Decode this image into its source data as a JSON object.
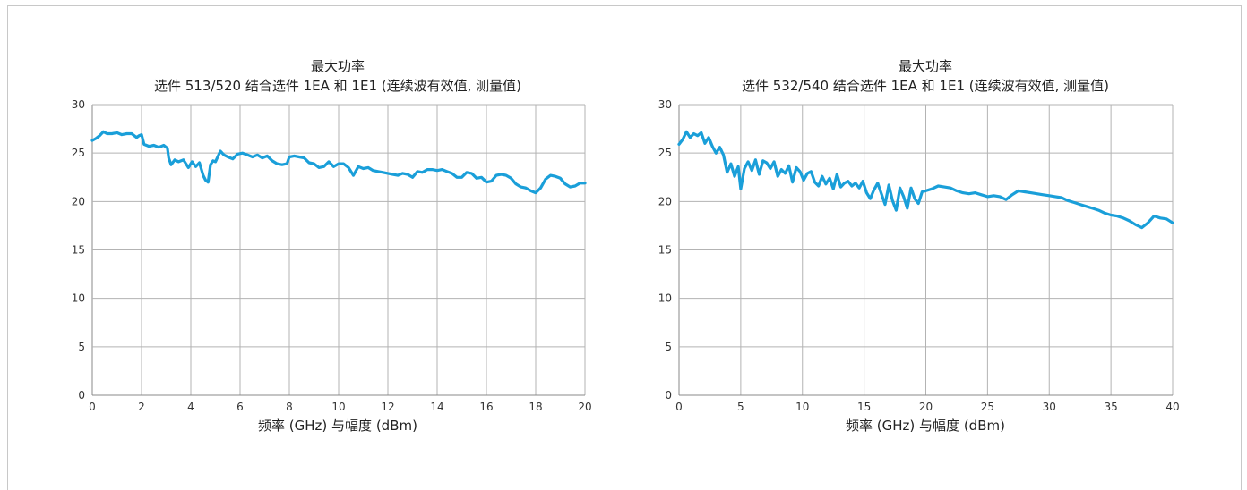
{
  "chart_data": [
    {
      "type": "line",
      "title": "最大功率",
      "subtitle": "选件 513/520 结合选件 1EA 和 1E1 (连续波有效值, 测量值)",
      "xlabel": "频率 (GHz) 与幅度 (dBm)",
      "ylabel": "",
      "xlim": [
        0,
        20
      ],
      "ylim": [
        0,
        30
      ],
      "xticks": [
        "0",
        "2",
        "4",
        "6",
        "8",
        "10",
        "12",
        "14",
        "16",
        "18",
        "20"
      ],
      "yticks": [
        "0",
        "5",
        "10",
        "15",
        "20",
        "25",
        "30"
      ],
      "grid": true,
      "color": "#1a9fd9",
      "series": [
        {
          "x": [
            0,
            0.15,
            0.3,
            0.45,
            0.6,
            0.8,
            1.0,
            1.2,
            1.4,
            1.6,
            1.8,
            1.9,
            2.0,
            2.1,
            2.3,
            2.5,
            2.7,
            2.9,
            3.05,
            3.1,
            3.2,
            3.35,
            3.5,
            3.7,
            3.9,
            4.05,
            4.2,
            4.35,
            4.5,
            4.6,
            4.7,
            4.8,
            4.9,
            5.0,
            5.2,
            5.35,
            5.5,
            5.7,
            5.9,
            6.1,
            6.3,
            6.5,
            6.7,
            6.9,
            7.1,
            7.3,
            7.5,
            7.7,
            7.9,
            8.0,
            8.2,
            8.4,
            8.6,
            8.8,
            9.0,
            9.2,
            9.4,
            9.6,
            9.8,
            10.0,
            10.2,
            10.4,
            10.6,
            10.8,
            11.0,
            11.2,
            11.4,
            11.6,
            11.8,
            12.0,
            12.2,
            12.4,
            12.6,
            12.8,
            13.0,
            13.2,
            13.4,
            13.6,
            13.8,
            14.0,
            14.2,
            14.4,
            14.6,
            14.8,
            15.0,
            15.2,
            15.4,
            15.6,
            15.8,
            16.0,
            16.2,
            16.4,
            16.6,
            16.8,
            17.0,
            17.2,
            17.4,
            17.6,
            17.8,
            18.0,
            18.2,
            18.4,
            18.6,
            18.8,
            19.0,
            19.2,
            19.4,
            19.6,
            19.8,
            20.0
          ],
          "y": [
            26.3,
            26.5,
            26.8,
            27.2,
            27.0,
            27.0,
            27.1,
            26.9,
            27.0,
            27.0,
            26.6,
            26.8,
            26.9,
            25.9,
            25.7,
            25.8,
            25.6,
            25.8,
            25.5,
            24.5,
            23.8,
            24.3,
            24.1,
            24.3,
            23.5,
            24.1,
            23.6,
            24.0,
            22.7,
            22.2,
            22.0,
            23.8,
            24.2,
            24.1,
            25.2,
            24.8,
            24.6,
            24.4,
            24.9,
            25.0,
            24.8,
            24.6,
            24.8,
            24.5,
            24.7,
            24.2,
            23.9,
            23.8,
            23.9,
            24.6,
            24.7,
            24.6,
            24.5,
            24.0,
            23.9,
            23.5,
            23.6,
            24.1,
            23.6,
            23.9,
            23.9,
            23.5,
            22.7,
            23.6,
            23.4,
            23.5,
            23.2,
            23.1,
            23.0,
            22.9,
            22.8,
            22.7,
            22.9,
            22.8,
            22.5,
            23.1,
            23.0,
            23.3,
            23.3,
            23.2,
            23.3,
            23.1,
            22.9,
            22.5,
            22.5,
            23.0,
            22.9,
            22.4,
            22.5,
            22.0,
            22.1,
            22.7,
            22.8,
            22.7,
            22.4,
            21.8,
            21.5,
            21.4,
            21.1,
            20.9,
            21.4,
            22.3,
            22.7,
            22.6,
            22.4,
            21.8,
            21.5,
            21.6,
            21.9,
            21.9
          ]
        }
      ]
    },
    {
      "type": "line",
      "title": "最大功率",
      "subtitle": "选件 532/540 结合选件 1EA 和 1E1 (连续波有效值, 测量值)",
      "xlabel": "频率 (GHz) 与幅度 (dBm)",
      "ylabel": "",
      "xlim": [
        0,
        40
      ],
      "ylim": [
        0,
        30
      ],
      "xticks": [
        "0",
        "5",
        "10",
        "15",
        "20",
        "25",
        "30",
        "35",
        "40"
      ],
      "yticks": [
        "0",
        "5",
        "10",
        "15",
        "20",
        "25",
        "30"
      ],
      "grid": true,
      "color": "#1a9fd9",
      "series": [
        {
          "x": [
            0,
            0.3,
            0.6,
            0.9,
            1.2,
            1.5,
            1.8,
            2.1,
            2.4,
            2.7,
            3.0,
            3.3,
            3.6,
            3.9,
            4.2,
            4.5,
            4.8,
            5.0,
            5.3,
            5.6,
            5.9,
            6.2,
            6.5,
            6.8,
            7.1,
            7.4,
            7.7,
            8.0,
            8.3,
            8.6,
            8.9,
            9.2,
            9.5,
            9.8,
            10.1,
            10.4,
            10.7,
            11.0,
            11.3,
            11.6,
            11.9,
            12.2,
            12.5,
            12.8,
            13.1,
            13.4,
            13.7,
            14.0,
            14.3,
            14.6,
            14.9,
            15.2,
            15.5,
            15.8,
            16.1,
            16.4,
            16.7,
            17.0,
            17.3,
            17.6,
            17.9,
            18.2,
            18.5,
            18.8,
            19.1,
            19.4,
            19.7,
            20.0,
            20.5,
            21.0,
            21.5,
            22.0,
            22.5,
            23.0,
            23.5,
            24.0,
            24.5,
            25.0,
            25.5,
            26.0,
            26.5,
            27.0,
            27.5,
            28.0,
            28.5,
            29.0,
            29.5,
            30.0,
            30.5,
            31.0,
            31.5,
            32.0,
            32.5,
            33.0,
            33.5,
            34.0,
            34.5,
            35.0,
            35.5,
            36.0,
            36.5,
            37.0,
            37.5,
            38.0,
            38.5,
            39.0,
            39.5,
            40.0
          ],
          "y": [
            25.9,
            26.4,
            27.2,
            26.6,
            27.0,
            26.8,
            27.1,
            26.0,
            26.6,
            25.7,
            25.0,
            25.6,
            24.8,
            23.0,
            23.9,
            22.6,
            23.6,
            21.3,
            23.4,
            24.1,
            23.2,
            24.3,
            22.8,
            24.2,
            24.0,
            23.4,
            24.1,
            22.6,
            23.3,
            22.9,
            23.7,
            22.0,
            23.5,
            23.1,
            22.2,
            22.9,
            23.1,
            22.0,
            21.6,
            22.6,
            21.8,
            22.4,
            21.3,
            22.8,
            21.5,
            21.9,
            22.1,
            21.6,
            21.9,
            21.4,
            22.1,
            20.9,
            20.3,
            21.2,
            21.9,
            20.8,
            19.7,
            21.7,
            20.1,
            19.1,
            21.4,
            20.5,
            19.3,
            21.4,
            20.3,
            19.8,
            21.0,
            21.1,
            21.3,
            21.6,
            21.5,
            21.4,
            21.1,
            20.9,
            20.8,
            20.9,
            20.7,
            20.5,
            20.6,
            20.5,
            20.2,
            20.7,
            21.1,
            21.0,
            20.9,
            20.8,
            20.7,
            20.6,
            20.5,
            20.4,
            20.1,
            19.9,
            19.7,
            19.5,
            19.3,
            19.1,
            18.8,
            18.6,
            18.5,
            18.3,
            18.0,
            17.6,
            17.3,
            17.8,
            18.5,
            18.3,
            18.2,
            17.8
          ]
        }
      ]
    }
  ]
}
